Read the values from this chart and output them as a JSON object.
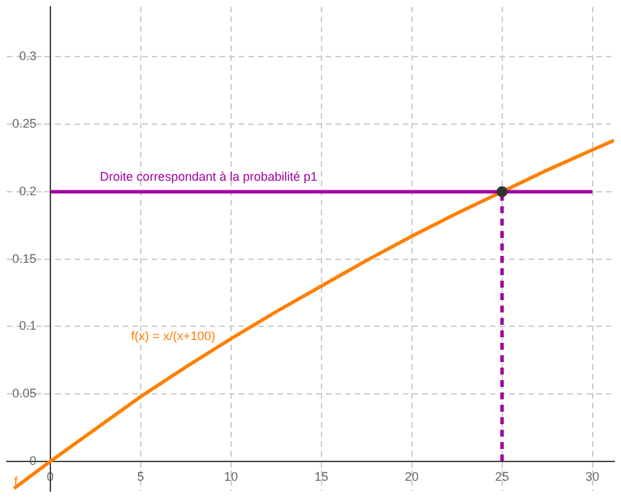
{
  "chart_data": {
    "type": "line",
    "xlim": [
      -2.4,
      31.2
    ],
    "ylim": [
      -0.022,
      0.337
    ],
    "xticks": [
      0,
      5,
      10,
      15,
      20,
      25,
      30
    ],
    "yticks": [
      0,
      0.05,
      0.1,
      0.15,
      0.2,
      0.25,
      0.3
    ],
    "grid": true,
    "legend": false,
    "marker": "none",
    "annotations": [
      "f(x) = x/(x+100)"
    ],
    "series": [
      {
        "name": "f",
        "color": "#ff7f00",
        "x": [
          -2,
          0,
          2.5,
          5,
          7.5,
          10,
          12.5,
          15,
          17.5,
          20,
          22.5,
          25,
          27.5,
          30,
          31.2
        ],
        "values": [
          -0.02,
          0,
          0.024,
          0.048,
          0.07,
          0.091,
          0.111,
          0.13,
          0.149,
          0.167,
          0.184,
          0.2,
          0.216,
          0.231,
          0.238
        ]
      },
      {
        "name": "Droite correspondant à la probabilité p1",
        "color": "#a000a0",
        "x": [
          0,
          30
        ],
        "values": [
          0.2,
          0.2
        ]
      },
      {
        "color": "#a000a0",
        "x": [
          25,
          25
        ],
        "values": [
          0,
          0.2
        ],
        "line_style": "dashed"
      },
      {
        "type": "scatter",
        "color": "#333333",
        "x": [
          25
        ],
        "values": [
          0.2
        ],
        "marker": "circle"
      }
    ]
  }
}
